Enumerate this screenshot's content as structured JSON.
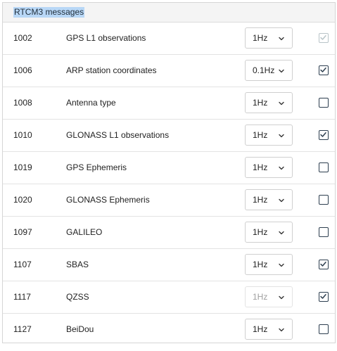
{
  "header": {
    "title": "RTCM3 messages"
  },
  "rows": [
    {
      "code": "1002",
      "name": "GPS L1 observations",
      "rate": "1Hz",
      "rate_disabled": false,
      "checked": true,
      "check_disabled": true
    },
    {
      "code": "1006",
      "name": "ARP station coordinates",
      "rate": "0.1Hz",
      "rate_disabled": false,
      "checked": true,
      "check_disabled": false
    },
    {
      "code": "1008",
      "name": "Antenna type",
      "rate": "1Hz",
      "rate_disabled": false,
      "checked": false,
      "check_disabled": false
    },
    {
      "code": "1010",
      "name": "GLONASS L1 observations",
      "rate": "1Hz",
      "rate_disabled": false,
      "checked": true,
      "check_disabled": false
    },
    {
      "code": "1019",
      "name": "GPS Ephemeris",
      "rate": "1Hz",
      "rate_disabled": false,
      "checked": false,
      "check_disabled": false
    },
    {
      "code": "1020",
      "name": "GLONASS Ephemeris",
      "rate": "1Hz",
      "rate_disabled": false,
      "checked": false,
      "check_disabled": false
    },
    {
      "code": "1097",
      "name": "GALILEO",
      "rate": "1Hz",
      "rate_disabled": false,
      "checked": false,
      "check_disabled": false
    },
    {
      "code": "1107",
      "name": "SBAS",
      "rate": "1Hz",
      "rate_disabled": false,
      "checked": true,
      "check_disabled": false
    },
    {
      "code": "1117",
      "name": "QZSS",
      "rate": "1Hz",
      "rate_disabled": true,
      "checked": true,
      "check_disabled": false
    },
    {
      "code": "1127",
      "name": "BeiDou",
      "rate": "1Hz",
      "rate_disabled": false,
      "checked": false,
      "check_disabled": false
    }
  ],
  "icons": {
    "select_arrow": "chevron-down-icon",
    "check": "checkmark-icon"
  },
  "colors": {
    "title_highlight": "#b8d7f6",
    "checkbox_border": "#2d3e4f",
    "disabled": "#a0a0a0"
  }
}
